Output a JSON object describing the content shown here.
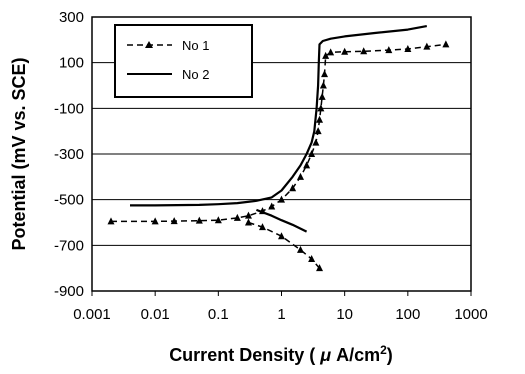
{
  "chart_data": {
    "type": "line",
    "xlabel": "Current Density ( μ A/cm²)",
    "xlabel_parts": {
      "prefix": "Current Density ( ",
      "mu": "μ",
      "unit": " A/cm",
      "sup": "2",
      "suffix": ")"
    },
    "ylabel": "Potential (mV vs. SCE)",
    "x_scale": "log",
    "xlim": [
      0.001,
      1000
    ],
    "ylim": [
      -900,
      300
    ],
    "x_ticks": [
      0.001,
      0.01,
      0.1,
      1,
      10,
      100,
      1000
    ],
    "x_tick_labels": [
      "0.001",
      "0.01",
      "0.1",
      "1",
      "10",
      "100",
      "1000"
    ],
    "y_ticks": [
      300,
      100,
      -100,
      -300,
      -500,
      -700,
      -900
    ],
    "y_tick_labels": [
      "300",
      "100",
      "-100",
      "-300",
      "-500",
      "-700",
      "-900"
    ],
    "grid": "horizontal",
    "legend_position": "top-left",
    "series": [
      {
        "name": "No 1",
        "style": "dashed-triangle",
        "color": "#000000",
        "branches": [
          {
            "x": [
              0.002,
              0.01,
              0.02,
              0.05,
              0.1,
              0.2,
              0.3,
              0.5,
              0.7,
              1,
              1.5,
              2,
              2.5,
              3,
              3.5,
              3.8,
              4,
              4.2,
              4.4,
              4.6,
              4.8,
              5,
              6,
              10,
              20,
              50,
              100,
              200,
              400
            ],
            "y": [
              -595,
              -595,
              -594,
              -592,
              -590,
              -580,
              -570,
              -550,
              -530,
              -500,
              -450,
              -400,
              -350,
              -300,
              -250,
              -200,
              -150,
              -100,
              -50,
              0,
              50,
              130,
              145,
              148,
              150,
              155,
              160,
              170,
              180
            ]
          },
          {
            "x": [
              0.3,
              0.5,
              1,
              2,
              3,
              4
            ],
            "y": [
              -600,
              -620,
              -660,
              -720,
              -760,
              -800
            ]
          }
        ]
      },
      {
        "name": "No 2",
        "style": "solid",
        "color": "#000000",
        "branches": [
          {
            "x": [
              0.004,
              0.01,
              0.05,
              0.1,
              0.2,
              0.4,
              0.7,
              1,
              1.5,
              2,
              2.5,
              3,
              3.3,
              3.6,
              3.8,
              3.9,
              4,
              4.5,
              6,
              10,
              30,
              100,
              200
            ],
            "y": [
              -525,
              -525,
              -523,
              -520,
              -515,
              -505,
              -490,
              -460,
              -400,
              -350,
              -300,
              -250,
              -200,
              -100,
              0,
              100,
              180,
              195,
              205,
              215,
              230,
              245,
              260
            ]
          },
          {
            "x": [
              0.4,
              0.7,
              1,
              1.5,
              2.5
            ],
            "y": [
              -545,
              -570,
              -590,
              -610,
              -640
            ]
          }
        ]
      }
    ]
  }
}
